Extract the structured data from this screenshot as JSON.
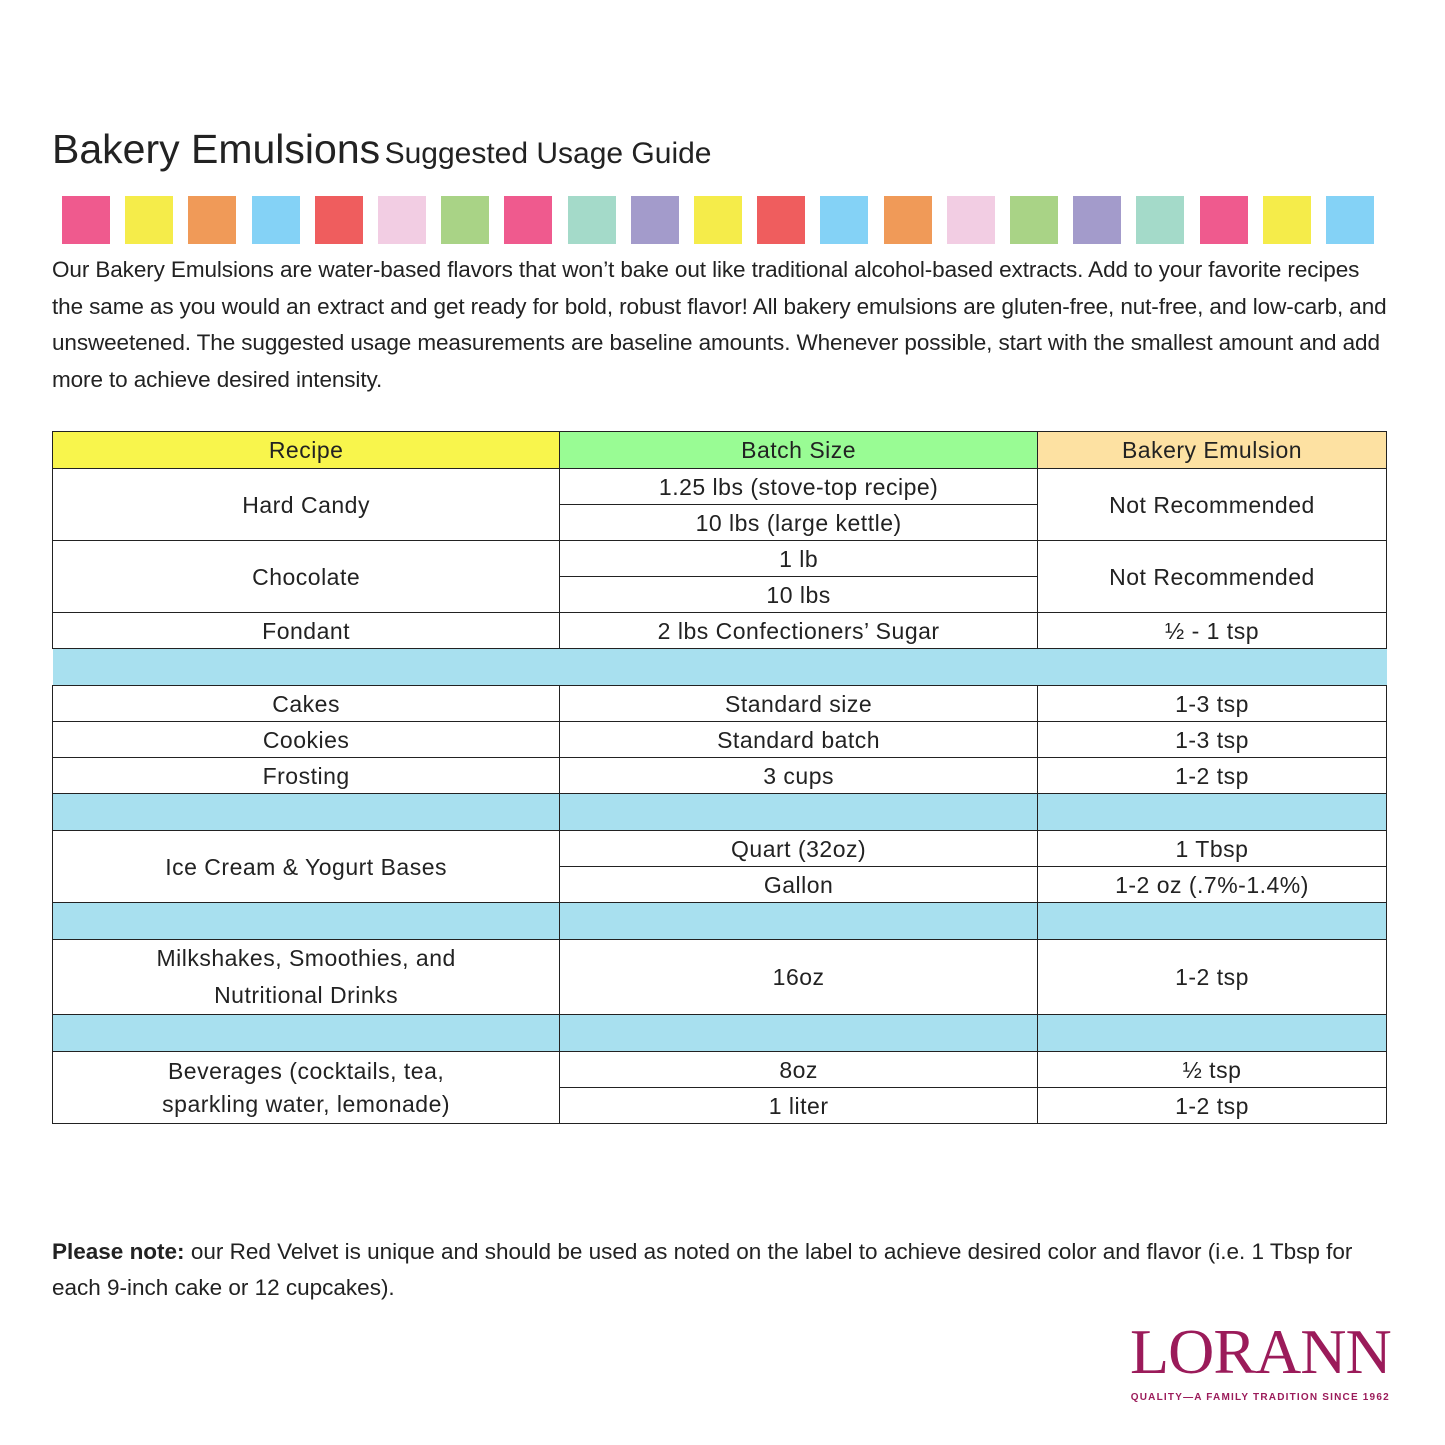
{
  "title": {
    "main": "Bakery Emulsions",
    "sub": "Suggested Usage Guide"
  },
  "swatch_colors": [
    "#ef5a8e",
    "#f5ec4a",
    "#f09a58",
    "#84d2f6",
    "#ef5d5e",
    "#f2cde3",
    "#a9d386",
    "#ef5a8e",
    "#a4dac9",
    "#a39bcb",
    "#f5ec4a",
    "#ef5d5e",
    "#84d2f6",
    "#f09a58",
    "#f2cde3",
    "#a9d386",
    "#a39bcb",
    "#a4dac9",
    "#ef5a8e",
    "#f5ec4a",
    "#84d2f6"
  ],
  "intro": "Our Bakery Emulsions are water-based flavors that won’t bake out like traditional alcohol-based extracts. Add to your favorite recipes the same as you would an extract and get ready for bold, robust flavor! All bakery emulsions are gluten-free, nut-free, and low-carb, and unsweetened. The suggested usage measurements are baseline amounts. Whenever possible, start with the smallest amount and add more to achieve desired intensity.",
  "table": {
    "headers": [
      "Recipe",
      "Batch Size",
      "Bakery Emulsion"
    ],
    "header_colors": [
      "#f8f54c",
      "#99fc94",
      "#fde1a2"
    ],
    "separator_color": "#a8e0ef",
    "rows": [
      {
        "recipe": "Hard Candy",
        "batch": [
          "1.25 lbs (stove-top recipe)",
          "10 lbs (large kettle)"
        ],
        "emulsion": "Not Recommended"
      },
      {
        "recipe": "Chocolate",
        "batch": [
          "1 lb",
          "10 lbs"
        ],
        "emulsion": "Not Recommended"
      },
      {
        "recipe": "Fondant",
        "batch": "2 lbs Confectioners’ Sugar",
        "emulsion": "½ - 1 tsp"
      },
      {
        "recipe": "Cakes",
        "batch": "Standard size",
        "emulsion": "1-3 tsp"
      },
      {
        "recipe": "Cookies",
        "batch": "Standard batch",
        "emulsion": "1-3 tsp"
      },
      {
        "recipe": "Frosting",
        "batch": "3 cups",
        "emulsion": "1-2 tsp"
      },
      {
        "recipe": "Ice Cream & Yogurt Bases",
        "batch": [
          "Quart (32oz)",
          "Gallon"
        ],
        "emulsion": [
          "1 Tbsp",
          "1-2 oz (.7%-1.4%)"
        ]
      },
      {
        "recipe": [
          "Milkshakes, Smoothies, and",
          "Nutritional Drinks"
        ],
        "batch": "16oz",
        "emulsion": "1-2 tsp"
      },
      {
        "recipe": [
          "Beverages (cocktails, tea,",
          "sparkling water, lemonade)"
        ],
        "batch": [
          "8oz",
          "1 liter"
        ],
        "emulsion": [
          "½ tsp",
          "1-2 tsp"
        ]
      }
    ]
  },
  "note": {
    "bold": "Please note:",
    "text": " our Red Velvet is unique and should be used as noted on the label to achieve desired color and flavor (i.e. 1 Tbsp for each 9-inch cake or 12 cupcakes)."
  },
  "logo": {
    "word": "LORANN",
    "tagline": "QUALITY—A FAMILY TRADITION SINCE 1962",
    "color": "#9b1b5a"
  }
}
